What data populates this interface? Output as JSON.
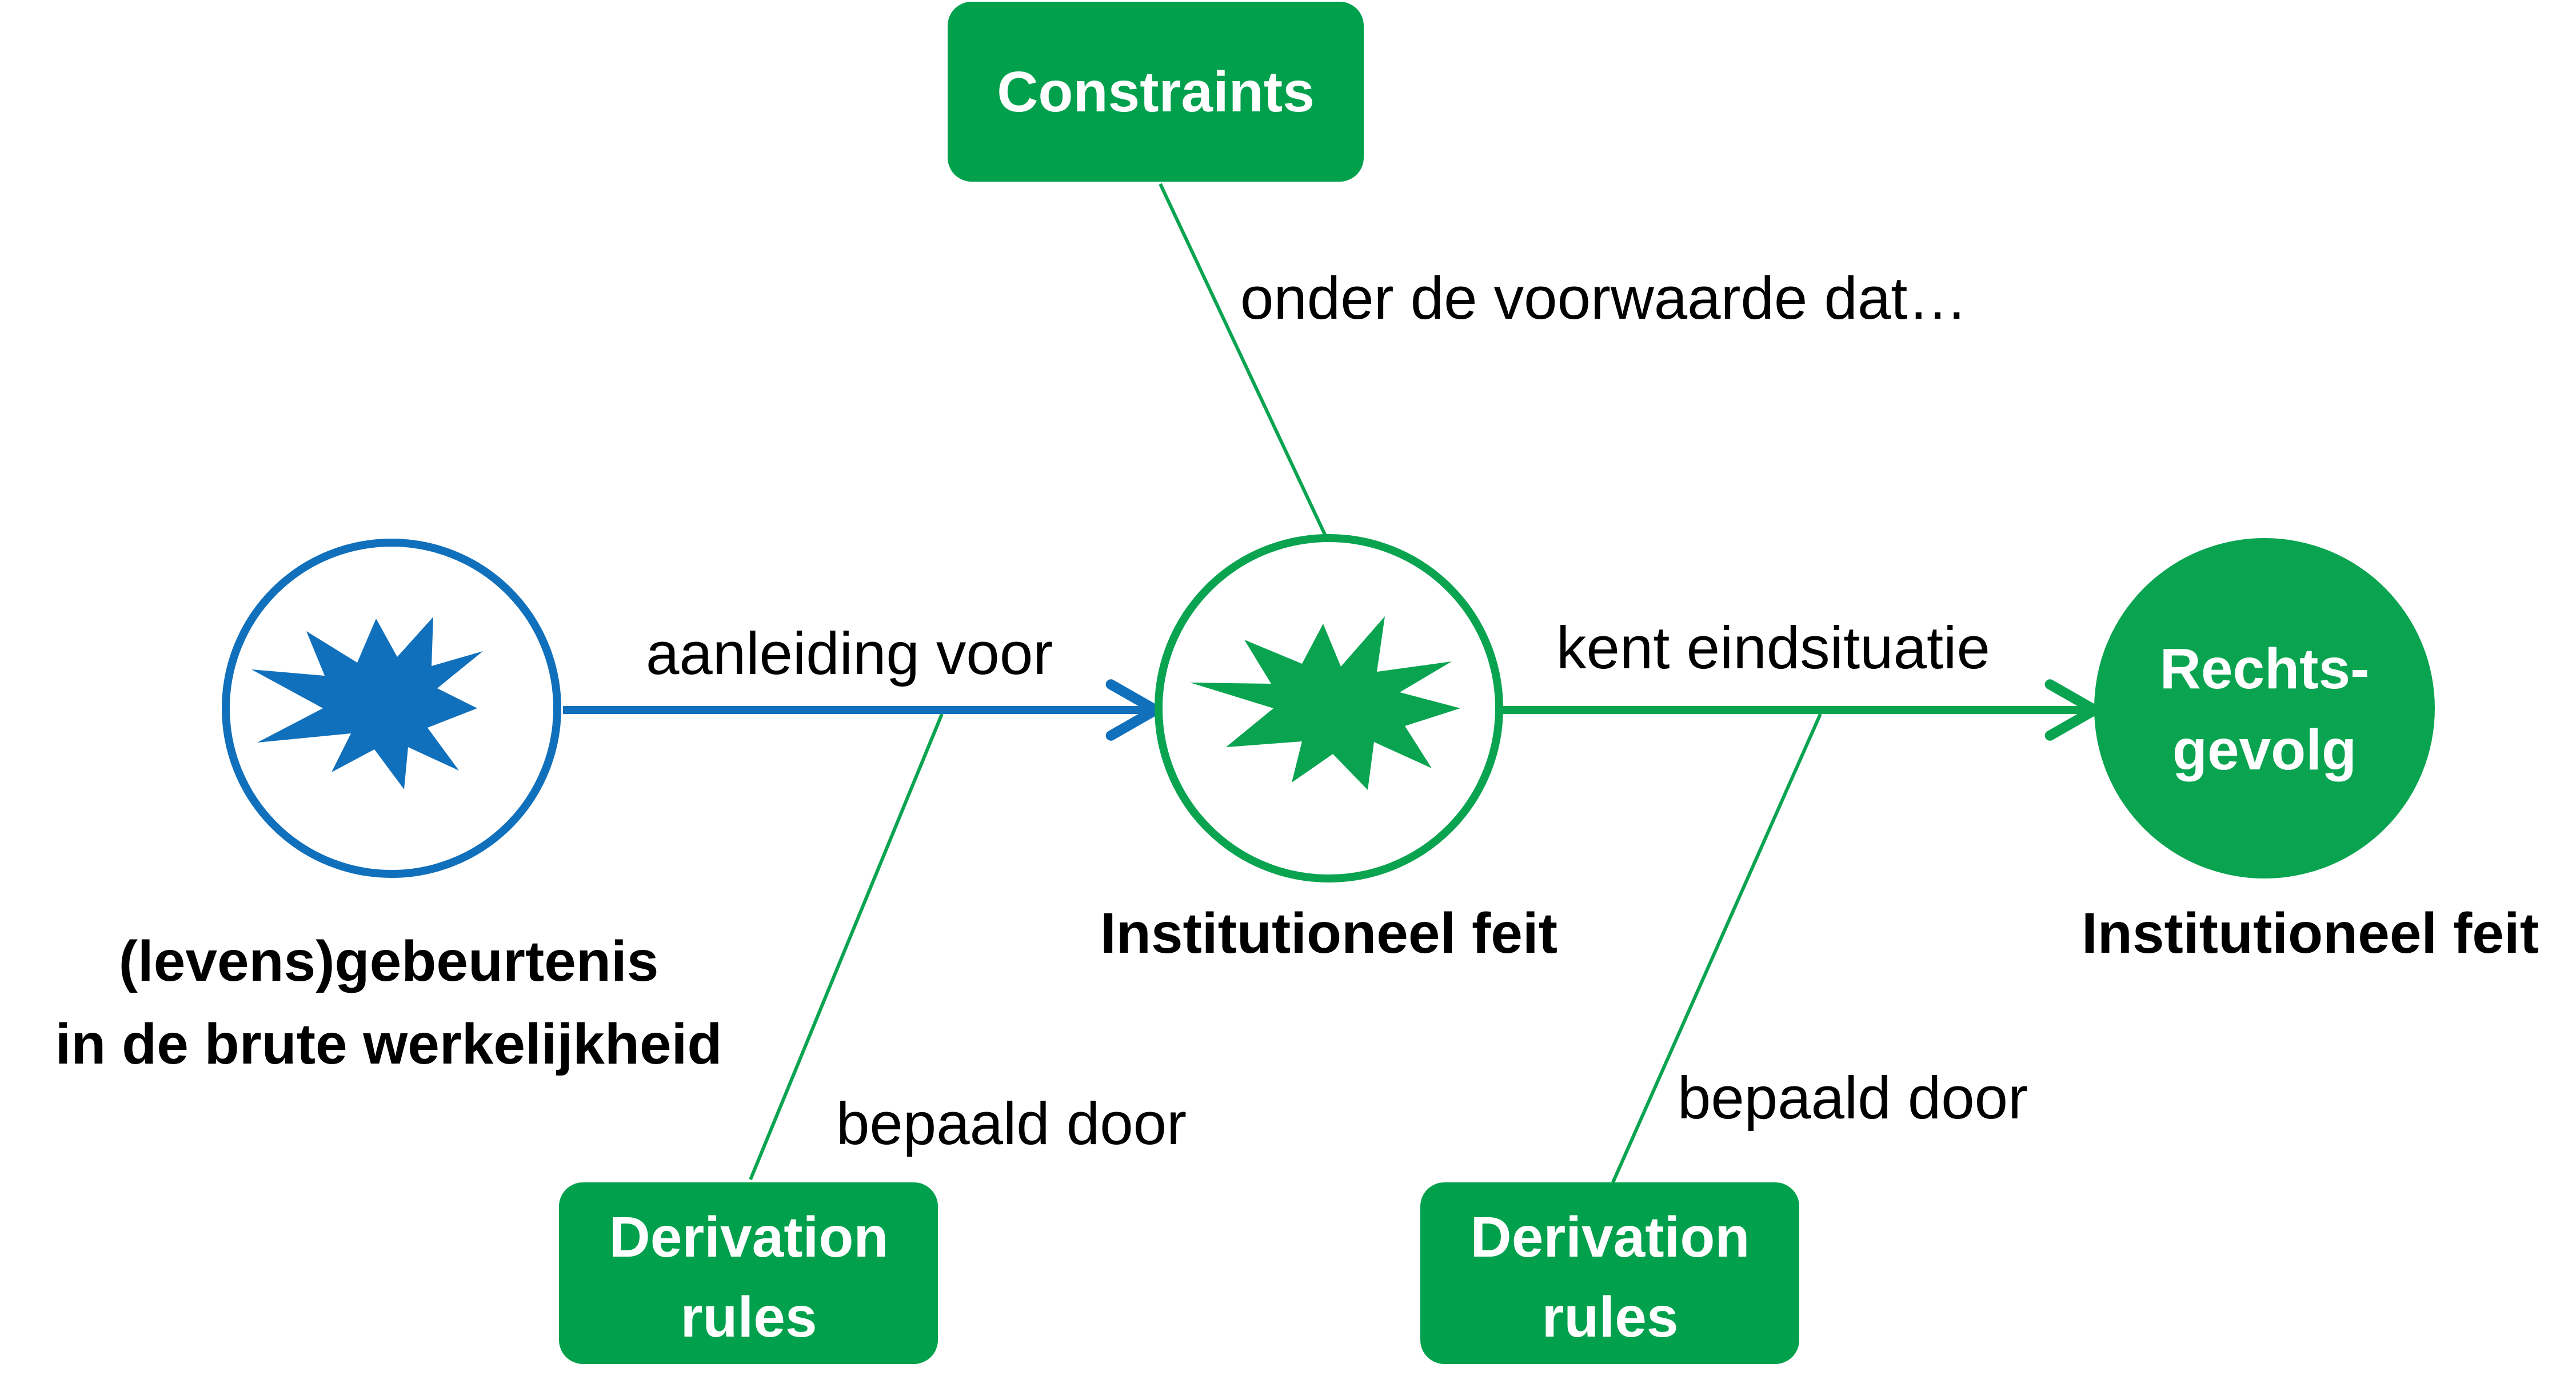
{
  "colors": {
    "blue": "#1170bb",
    "green": "#0aa450",
    "box_fill": "#00a04c",
    "text_on_box": "#ffffff",
    "label_text": "#000000"
  },
  "boxes": {
    "constraints": {
      "label": "Constraints"
    },
    "derivation_left": {
      "line1": "Derivation",
      "line2": "rules"
    },
    "derivation_right": {
      "line1": "Derivation",
      "line2": "rules"
    }
  },
  "nodes": {
    "brute_event": {
      "icon": "explosion-icon",
      "caption_line1": "(levens)gebeurtenis",
      "caption_line2": "in de brute werkelijkheid"
    },
    "institutional_fact": {
      "icon": "explosion-icon",
      "caption": "Institutioneel feit"
    },
    "legal_consequence": {
      "line1": "Rechts-",
      "line2": "gevolg",
      "caption": "Institutioneel feit"
    }
  },
  "edges": {
    "aanleiding": {
      "label": "aanleiding voor"
    },
    "eindsituatie": {
      "label": "kent eindsituatie"
    }
  },
  "annotations": {
    "voorwaarde": "onder de voorwaarde dat…",
    "bepaald_left": "bepaald door",
    "bepaald_right": "bepaald door"
  }
}
